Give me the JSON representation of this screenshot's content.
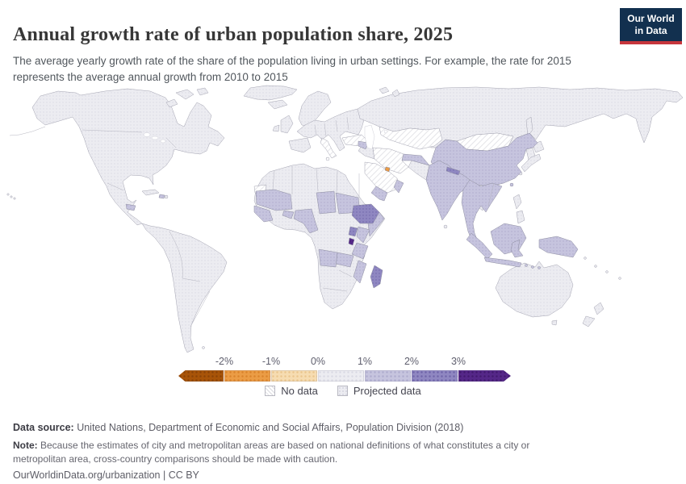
{
  "header": {
    "title": "Annual growth rate of urban population share, 2025",
    "subtitle": "The average yearly growth rate of the share of the population living in urban settings. For example, the rate for 2015 represents the average annual growth from 2010 to 2015",
    "logo": {
      "line1": "Our World",
      "line2": "in Data",
      "bg_color": "#12304f",
      "accent_color": "#c6363c"
    }
  },
  "chart_data": {
    "type": "heatmap",
    "subtype": "choropleth world map",
    "title": "Annual growth rate of urban population share, 2025",
    "year": 2025,
    "unit": "%",
    "projected": true,
    "projection_note": "All countries shown with dotted texture indicating projected data",
    "legend_position": "bottom center",
    "color_scale": {
      "ticks": [
        "-2%",
        "-1%",
        "0%",
        "1%",
        "2%",
        "3%"
      ],
      "bins": [
        {
          "label": "less than -2%",
          "color": "#a85408",
          "dot": "#8a4206"
        },
        {
          "label": "-2% to -1%",
          "color": "#eb9c45",
          "dot": "#d9822a"
        },
        {
          "label": "-1% to 0%",
          "color": "#f6dcb1",
          "dot": "#e9c58c"
        },
        {
          "label": "0% to 1%",
          "color": "#ececf1",
          "dot": "#d9d9e3"
        },
        {
          "label": "1% to 2%",
          "color": "#c6c4de",
          "dot": "#aeabcd"
        },
        {
          "label": "2% to 3%",
          "color": "#8f87c1",
          "dot": "#6e64a8"
        },
        {
          "label": "more than 3%",
          "color": "#552788",
          "dot": "#41196e"
        }
      ],
      "no_data_label": "No data",
      "projected_label": "Projected data",
      "no_data_color": "#ffffff"
    },
    "regions": [
      {
        "name": "United States",
        "bin": "0% to 1%"
      },
      {
        "name": "Canada",
        "bin": "0% to 1%"
      },
      {
        "name": "Mexico",
        "bin": "0% to 1%"
      },
      {
        "name": "Greenland",
        "bin": "0% to 1%"
      },
      {
        "name": "Brazil",
        "bin": "0% to 1%"
      },
      {
        "name": "Argentina",
        "bin": "0% to 1%"
      },
      {
        "name": "Europe (most countries)",
        "bin": "0% to 1%"
      },
      {
        "name": "Russia",
        "bin": "0% to 1%"
      },
      {
        "name": "Japan",
        "bin": "0% to 1%"
      },
      {
        "name": "Philippines",
        "bin": "0% to 1%"
      },
      {
        "name": "Australia",
        "bin": "0% to 1%"
      },
      {
        "name": "New Zealand",
        "bin": "0% to 1%"
      },
      {
        "name": "South Africa",
        "bin": "0% to 1%"
      },
      {
        "name": "Egypt",
        "bin": "0% to 1%"
      },
      {
        "name": "Algeria",
        "bin": "0% to 1%"
      },
      {
        "name": "Libya",
        "bin": "0% to 1%"
      },
      {
        "name": "China",
        "bin": "1% to 2%"
      },
      {
        "name": "India",
        "bin": "1% to 2%"
      },
      {
        "name": "Indonesia",
        "bin": "1% to 2%"
      },
      {
        "name": "Malaysia",
        "bin": "1% to 2%"
      },
      {
        "name": "Papua New Guinea",
        "bin": "1% to 2%"
      },
      {
        "name": "Afghanistan",
        "bin": "1% to 2%"
      },
      {
        "name": "Syria",
        "bin": "1% to 2%"
      },
      {
        "name": "Yemen",
        "bin": "1% to 2%"
      },
      {
        "name": "Oman",
        "bin": "1% to 2%"
      },
      {
        "name": "Mauritania",
        "bin": "1% to 2%"
      },
      {
        "name": "Mali",
        "bin": "1% to 2%"
      },
      {
        "name": "Guinea",
        "bin": "1% to 2%"
      },
      {
        "name": "Burkina Faso",
        "bin": "1% to 2%"
      },
      {
        "name": "Nigeria",
        "bin": "1% to 2%"
      },
      {
        "name": "Cameroon",
        "bin": "1% to 2%"
      },
      {
        "name": "Chad",
        "bin": "1% to 2%"
      },
      {
        "name": "Sudan",
        "bin": "1% to 2%"
      },
      {
        "name": "Somalia",
        "bin": "1% to 2%"
      },
      {
        "name": "Kenya",
        "bin": "1% to 2%"
      },
      {
        "name": "Tanzania",
        "bin": "1% to 2%"
      },
      {
        "name": "Zambia",
        "bin": "1% to 2%"
      },
      {
        "name": "Angola",
        "bin": "1% to 2%"
      },
      {
        "name": "Mozambique",
        "bin": "1% to 2%"
      },
      {
        "name": "Honduras",
        "bin": "1% to 2%"
      },
      {
        "name": "Haiti",
        "bin": "1% to 2%"
      },
      {
        "name": "Ethiopia",
        "bin": "2% to 3%"
      },
      {
        "name": "Uganda",
        "bin": "2% to 3%"
      },
      {
        "name": "Nepal",
        "bin": "2% to 3%"
      },
      {
        "name": "Madagascar",
        "bin": "2% to 3%"
      },
      {
        "name": "Burundi",
        "bin": "more than 3%"
      },
      {
        "name": "Kuwait",
        "bin": "-2% to -1%"
      },
      {
        "name": "Iran",
        "bin": "No data"
      },
      {
        "name": "Saudi Arabia",
        "bin": "No data"
      },
      {
        "name": "Turkey",
        "bin": "No data"
      },
      {
        "name": "Kazakhstan",
        "bin": "No data"
      },
      {
        "name": "Mongolia",
        "bin": "No data"
      },
      {
        "name": "Italy",
        "bin": "No data"
      },
      {
        "name": "Western Sahara",
        "bin": "No data"
      }
    ]
  },
  "footer": {
    "data_source_label": "Data source:",
    "data_source_text": " United Nations, Department of Economic and Social Affairs, Population Division (2018)",
    "note_label": "Note:",
    "note_text": " Because the estimates of city and metropolitan areas are based on national definitions of what constitutes a city or metropolitan area, cross-country comparisons should be made with caution.",
    "cc_line": "OurWorldinData.org/urbanization | CC BY"
  }
}
